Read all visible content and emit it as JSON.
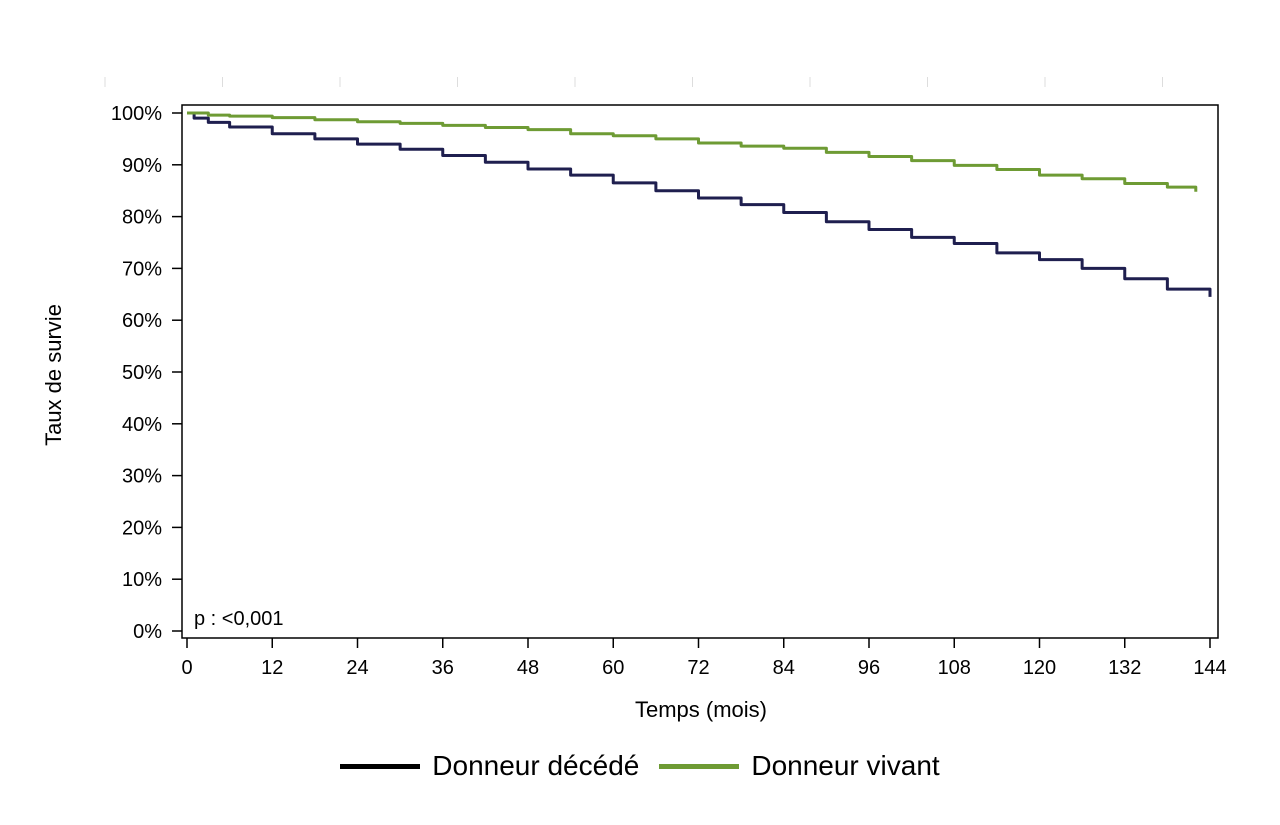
{
  "chart_data": {
    "type": "line",
    "xlabel": "Temps (mois)",
    "ylabel": "Taux de survie",
    "xlim": [
      0,
      144
    ],
    "ylim": [
      0,
      100
    ],
    "x_ticks": [
      0,
      12,
      24,
      36,
      48,
      60,
      72,
      84,
      96,
      108,
      120,
      132,
      144
    ],
    "y_ticks": [
      0,
      10,
      20,
      30,
      40,
      50,
      60,
      70,
      80,
      90,
      100
    ],
    "y_tick_labels": [
      "0%",
      "10%",
      "20%",
      "30%",
      "40%",
      "50%",
      "60%",
      "70%",
      "80%",
      "90%",
      "100%"
    ],
    "annotation": "p : <0,001",
    "legend_position": "bottom",
    "series": [
      {
        "name": "Donneur décédé",
        "color": "#1f1f4f",
        "x": [
          0,
          1,
          3,
          6,
          12,
          18,
          24,
          30,
          36,
          42,
          48,
          54,
          60,
          66,
          72,
          78,
          84,
          90,
          96,
          102,
          108,
          114,
          120,
          126,
          132,
          138,
          144
        ],
        "y": [
          100,
          99,
          98.2,
          97.3,
          96,
          95,
          94,
          93,
          91.8,
          90.5,
          89.2,
          88,
          86.5,
          85,
          83.6,
          82.3,
          80.8,
          79,
          77.5,
          76,
          74.8,
          73,
          71.7,
          70,
          68,
          66,
          64.5
        ]
      },
      {
        "name": "Donneur vivant",
        "color": "#6e9b34",
        "x": [
          0,
          3,
          6,
          12,
          18,
          24,
          30,
          36,
          42,
          48,
          54,
          60,
          66,
          72,
          78,
          84,
          90,
          96,
          102,
          108,
          114,
          120,
          126,
          132,
          138,
          142
        ],
        "y": [
          100,
          99.6,
          99.4,
          99.1,
          98.7,
          98.3,
          98,
          97.6,
          97.2,
          96.8,
          96,
          95.6,
          95,
          94.2,
          93.6,
          93.2,
          92.4,
          91.6,
          90.8,
          89.9,
          89.1,
          88,
          87.3,
          86.4,
          85.7,
          84.8
        ]
      }
    ]
  }
}
